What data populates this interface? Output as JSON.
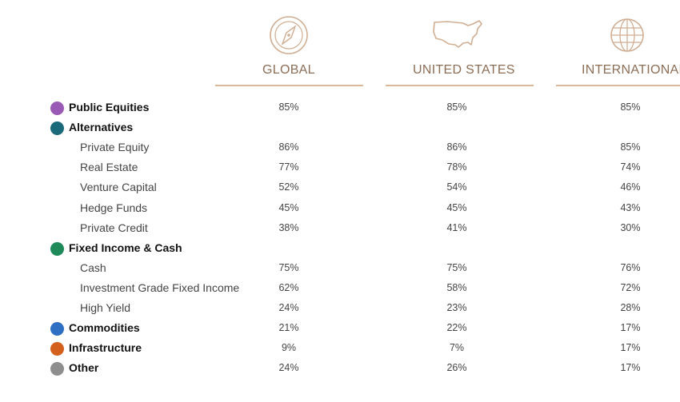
{
  "columns": [
    {
      "label": "GLOBAL",
      "icon": "compass-icon"
    },
    {
      "label": "UNITED STATES",
      "icon": "us-map-icon"
    },
    {
      "label": "INTERNATIONAL",
      "icon": "globe-icon"
    }
  ],
  "colors": {
    "header_text": "#8c6d55",
    "rule": "#d9b99a",
    "public_equities": "#9b59b6",
    "alternatives": "#1b6a7c",
    "fixed_income": "#1e8a5a",
    "commodities": "#2e6fc4",
    "infrastructure": "#d4601e",
    "other": "#8e8e8e"
  },
  "chart_data": {
    "type": "table",
    "columns": [
      "GLOBAL",
      "UNITED STATES",
      "INTERNATIONAL"
    ],
    "rows": [
      {
        "label": "Public Equities",
        "kind": "category",
        "color": "#9b59b6",
        "values": [
          "85%",
          "85%",
          "85%"
        ]
      },
      {
        "label": "Alternatives",
        "kind": "category",
        "color": "#1b6a7c",
        "values": [
          "",
          "",
          ""
        ]
      },
      {
        "label": "Private Equity",
        "kind": "sub",
        "values": [
          "86%",
          "86%",
          "85%"
        ]
      },
      {
        "label": "Real Estate",
        "kind": "sub",
        "values": [
          "77%",
          "78%",
          "74%"
        ]
      },
      {
        "label": "Venture Capital",
        "kind": "sub",
        "values": [
          "52%",
          "54%",
          "46%"
        ]
      },
      {
        "label": "Hedge Funds",
        "kind": "sub",
        "values": [
          "45%",
          "45%",
          "43%"
        ]
      },
      {
        "label": "Private Credit",
        "kind": "sub",
        "values": [
          "38%",
          "41%",
          "30%"
        ]
      },
      {
        "label": "Fixed Income & Cash",
        "kind": "category",
        "color": "#1e8a5a",
        "values": [
          "",
          "",
          ""
        ]
      },
      {
        "label": "Cash",
        "kind": "sub",
        "values": [
          "75%",
          "75%",
          "76%"
        ]
      },
      {
        "label": "Investment Grade Fixed Income",
        "kind": "sub",
        "values": [
          "62%",
          "58%",
          "72%"
        ]
      },
      {
        "label": "High Yield",
        "kind": "sub",
        "values": [
          "24%",
          "23%",
          "28%"
        ]
      },
      {
        "label": "Commodities",
        "kind": "category",
        "color": "#2e6fc4",
        "values": [
          "21%",
          "22%",
          "17%"
        ]
      },
      {
        "label": "Infrastructure",
        "kind": "category",
        "color": "#d4601e",
        "values": [
          "9%",
          "7%",
          "17%"
        ]
      },
      {
        "label": "Other",
        "kind": "category",
        "color": "#8e8e8e",
        "values": [
          "24%",
          "26%",
          "17%"
        ]
      }
    ]
  }
}
